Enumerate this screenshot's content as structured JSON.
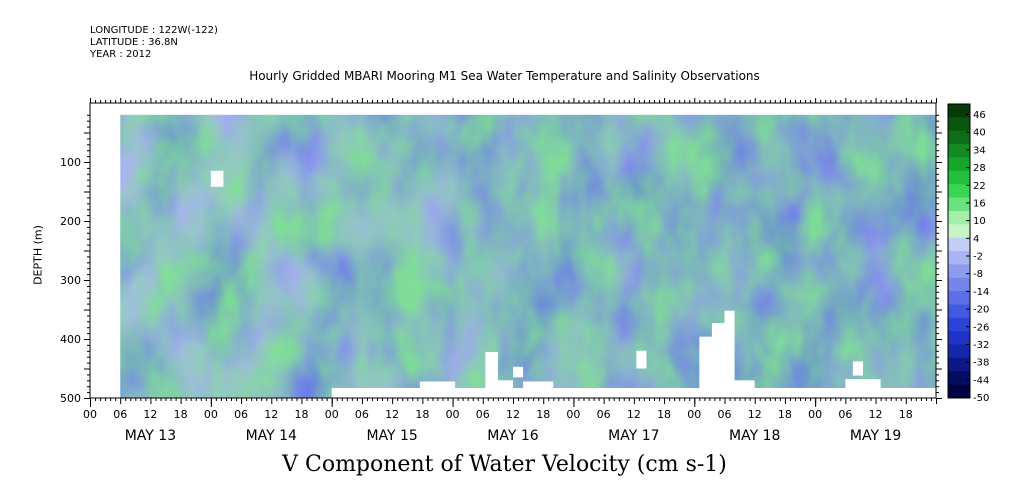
{
  "header": {
    "longitude": "LONGITUDE : 122W(-122)",
    "latitude": "LATITUDE : 36.8N",
    "year": "YEAR : 2012"
  },
  "chart_data": {
    "type": "heatmap",
    "title": "Hourly Gridded MBARI Mooring M1 Sea Water Temperature and Salinity Observations",
    "xlabel": "V Component of Water Velocity (cm s-1)",
    "ylabel": "DEPTH (m)",
    "x_range_hours": [
      0,
      168
    ],
    "data_start_hour": 6,
    "y_range_m": [
      0,
      500
    ],
    "y_reversed": true,
    "y_ticks": [
      100,
      200,
      300,
      400,
      500
    ],
    "hour_tick_labels": [
      "00",
      "06",
      "12",
      "18"
    ],
    "day_labels": [
      "MAY 13",
      "MAY 14",
      "MAY 15",
      "MAY 16",
      "MAY 17",
      "MAY 18",
      "MAY 19"
    ],
    "colorbar": {
      "levels": [
        -50,
        -44,
        -38,
        -32,
        -26,
        -20,
        -14,
        -8,
        -2,
        4,
        10,
        16,
        22,
        28,
        34,
        40,
        46
      ],
      "labels": [
        "46",
        "40",
        "34",
        "28",
        "22",
        "16",
        "10",
        "4",
        "-2",
        "-8",
        "-14",
        "-20",
        "-26",
        "-32",
        "-38",
        "-44",
        "-50"
      ],
      "colors": [
        "#063a06",
        "#0a560f",
        "#0e6d18",
        "#138a22",
        "#18a52c",
        "#22c03a",
        "#3ad555",
        "#6ae27e",
        "#a3efa9",
        "#c7f6c6",
        "#c5cdf7",
        "#aab5f3",
        "#8f9ced",
        "#7585ea",
        "#5c6fe5",
        "#4359df",
        "#2d44d8",
        "#1f34c6",
        "#1626a9",
        "#0c1886",
        "#040b62",
        "#000244"
      ]
    },
    "blanks": [
      {
        "hour_start": 0,
        "hour_end": 6,
        "depth_top": 0,
        "depth_bottom": 500
      },
      {
        "hour_start": 0,
        "hour_end": 168,
        "depth_top": 0,
        "depth_bottom": 20
      },
      {
        "hour_start": 24,
        "hour_end": 26.5,
        "depth_top": 115,
        "depth_bottom": 142
      },
      {
        "hour_start": 48,
        "hour_end": 168,
        "depth_top": 483,
        "depth_bottom": 500
      },
      {
        "hour_start": 65.5,
        "hour_end": 72.5,
        "depth_top": 472,
        "depth_bottom": 500
      },
      {
        "hour_start": 78.5,
        "hour_end": 81,
        "depth_top": 422,
        "depth_bottom": 500
      },
      {
        "hour_start": 81,
        "hour_end": 84,
        "depth_top": 470,
        "depth_bottom": 500
      },
      {
        "hour_start": 84,
        "hour_end": 86,
        "depth_top": 447,
        "depth_bottom": 465
      },
      {
        "hour_start": 86,
        "hour_end": 92,
        "depth_top": 472,
        "depth_bottom": 500
      },
      {
        "hour_start": 108.5,
        "hour_end": 110.5,
        "depth_top": 420,
        "depth_bottom": 450
      },
      {
        "hour_start": 121,
        "hour_end": 124,
        "depth_top": 396,
        "depth_bottom": 500
      },
      {
        "hour_start": 123.5,
        "hour_end": 126,
        "depth_top": 373,
        "depth_bottom": 500
      },
      {
        "hour_start": 126,
        "hour_end": 128,
        "depth_top": 352,
        "depth_bottom": 500
      },
      {
        "hour_start": 128,
        "hour_end": 132,
        "depth_top": 470,
        "depth_bottom": 500
      },
      {
        "hour_start": 151.5,
        "hour_end": 153.5,
        "depth_top": 438,
        "depth_bottom": 462
      },
      {
        "hour_start": 150,
        "hour_end": 157,
        "depth_top": 468,
        "depth_bottom": 500
      }
    ]
  }
}
